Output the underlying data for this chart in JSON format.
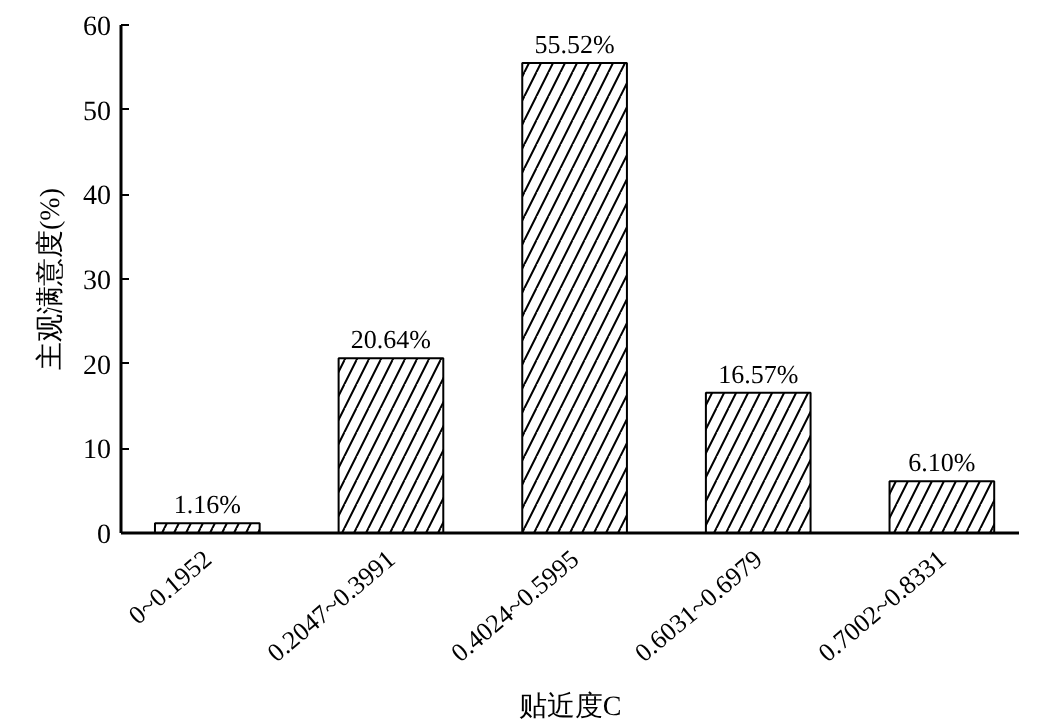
{
  "chart_data": {
    "type": "bar",
    "xlabel": "贴近度C",
    "ylabel": "主观满意度(%)",
    "categories": [
      "0~0.1952",
      "0.2047~0.3991",
      "0.4024~0.5995",
      "0.6031~0.6979",
      "0.7002~0.8331"
    ],
    "values": [
      1.16,
      20.64,
      55.52,
      16.57,
      6.1
    ],
    "value_labels": [
      "1.16%",
      "20.64%",
      "55.52%",
      "16.57%",
      "6.10%"
    ],
    "color": "#ffffff",
    "ylim": [
      0,
      60
    ],
    "yticks": [
      0,
      10,
      20,
      30,
      40,
      50,
      60
    ],
    "grid": false
  }
}
